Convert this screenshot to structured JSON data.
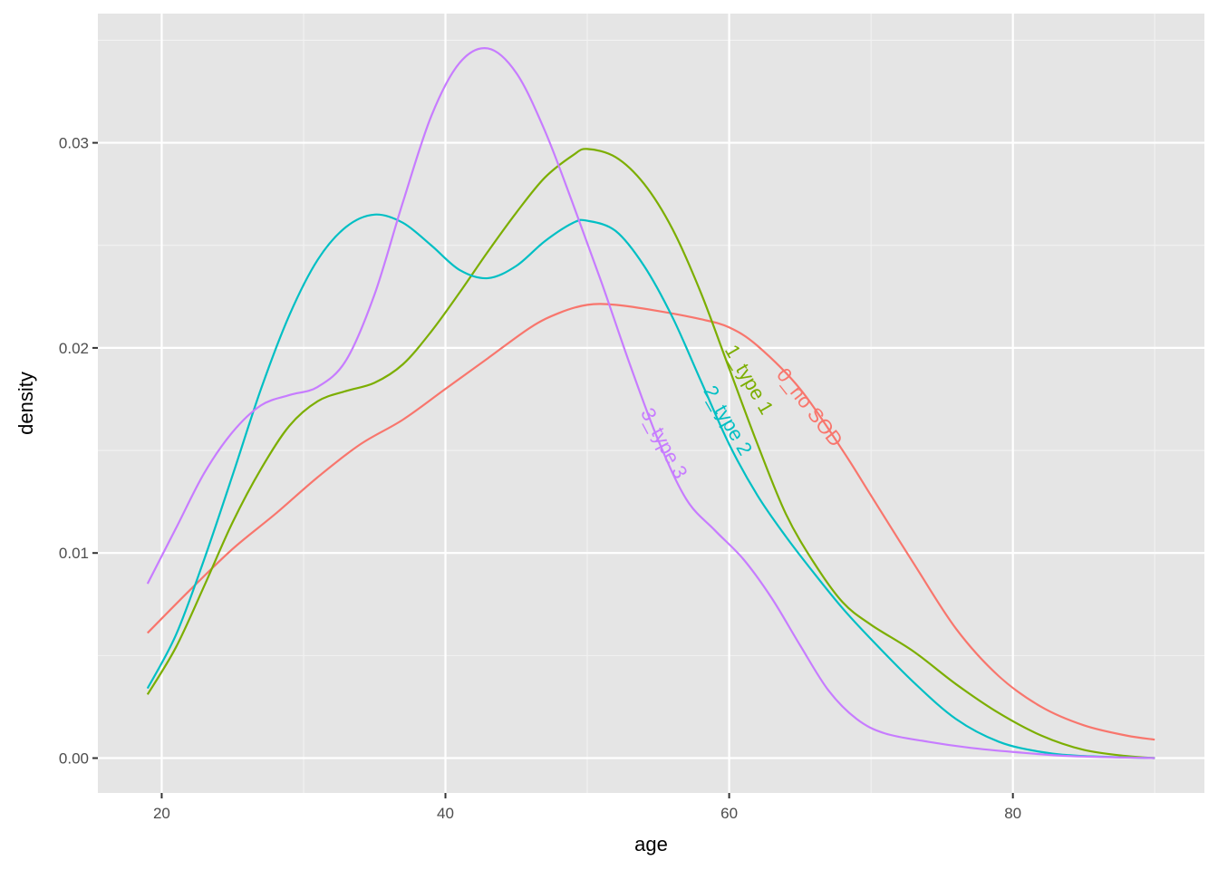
{
  "chart_data": {
    "type": "line",
    "subtype": "density",
    "title": "",
    "xlabel": "age",
    "ylabel": "density",
    "xlim": [
      15.5,
      93.5
    ],
    "ylim": [
      -0.0017,
      0.0363
    ],
    "x_ticks": [
      20,
      40,
      60,
      80
    ],
    "x_tick_labels": [
      "20",
      "40",
      "60",
      "80"
    ],
    "x_minor_gridlines": [
      30,
      50,
      70,
      90
    ],
    "y_ticks": [
      0.0,
      0.01,
      0.02,
      0.03
    ],
    "y_tick_labels": [
      "0.00",
      "0.01",
      "0.02",
      "0.03"
    ],
    "y_minor_gridlines": [
      0.005,
      0.015,
      0.025,
      0.035
    ],
    "grid": true,
    "legend": "none (direct curve labels)",
    "panel_background": "#e5e5e5",
    "series": [
      {
        "name": "0_no SOD",
        "color": "#f8766d",
        "label_position": {
          "age": 65.3,
          "density": 0.0169,
          "angle": 52
        },
        "points": [
          [
            19,
            0.0061
          ],
          [
            22,
            0.0082
          ],
          [
            25,
            0.0102
          ],
          [
            28,
            0.0119
          ],
          [
            31,
            0.0137
          ],
          [
            34,
            0.0153
          ],
          [
            37,
            0.0165
          ],
          [
            40,
            0.018
          ],
          [
            43,
            0.0195
          ],
          [
            46,
            0.021
          ],
          [
            48,
            0.0217
          ],
          [
            50,
            0.0221
          ],
          [
            52,
            0.0221
          ],
          [
            55,
            0.0218
          ],
          [
            58,
            0.0214
          ],
          [
            60,
            0.021
          ],
          [
            62,
            0.0201
          ],
          [
            65,
            0.018
          ],
          [
            68,
            0.015
          ],
          [
            70,
            0.0128
          ],
          [
            73,
            0.0095
          ],
          [
            76,
            0.0063
          ],
          [
            79,
            0.004
          ],
          [
            82,
            0.0025
          ],
          [
            85,
            0.0016
          ],
          [
            88,
            0.0011
          ],
          [
            90,
            0.0009
          ]
        ]
      },
      {
        "name": "1_type 1",
        "color": "#7cae00",
        "label_position": {
          "age": 61.0,
          "density": 0.0183,
          "angle": 60
        },
        "points": [
          [
            19,
            0.0031
          ],
          [
            21,
            0.0054
          ],
          [
            23,
            0.0084
          ],
          [
            25,
            0.0115
          ],
          [
            27,
            0.0141
          ],
          [
            29,
            0.0162
          ],
          [
            31,
            0.0174
          ],
          [
            33,
            0.0179
          ],
          [
            35,
            0.0183
          ],
          [
            37,
            0.0192
          ],
          [
            39,
            0.0208
          ],
          [
            41,
            0.0227
          ],
          [
            43,
            0.0247
          ],
          [
            45,
            0.0266
          ],
          [
            47,
            0.0283
          ],
          [
            49,
            0.0294
          ],
          [
            50,
            0.0297
          ],
          [
            52,
            0.0293
          ],
          [
            54,
            0.028
          ],
          [
            56,
            0.0258
          ],
          [
            58,
            0.0227
          ],
          [
            60,
            0.019
          ],
          [
            62,
            0.0153
          ],
          [
            64,
            0.0119
          ],
          [
            66,
            0.0095
          ],
          [
            68,
            0.0076
          ],
          [
            70,
            0.0065
          ],
          [
            73,
            0.0052
          ],
          [
            76,
            0.0036
          ],
          [
            79,
            0.0022
          ],
          [
            82,
            0.0011
          ],
          [
            85,
            0.0004
          ],
          [
            88,
            0.0001
          ],
          [
            90,
            0.0
          ]
        ]
      },
      {
        "name": "2_type 2",
        "color": "#00bfc4",
        "label_position": {
          "age": 59.5,
          "density": 0.0163,
          "angle": 60
        },
        "points": [
          [
            19,
            0.0034
          ],
          [
            21,
            0.006
          ],
          [
            23,
            0.0097
          ],
          [
            25,
            0.0138
          ],
          [
            27,
            0.018
          ],
          [
            29,
            0.0216
          ],
          [
            31,
            0.0243
          ],
          [
            33,
            0.0259
          ],
          [
            35,
            0.0265
          ],
          [
            37,
            0.0261
          ],
          [
            39,
            0.025
          ],
          [
            41,
            0.0238
          ],
          [
            43,
            0.0234
          ],
          [
            45,
            0.024
          ],
          [
            47,
            0.0252
          ],
          [
            49,
            0.0261
          ],
          [
            50,
            0.0262
          ],
          [
            52,
            0.0257
          ],
          [
            54,
            0.024
          ],
          [
            56,
            0.0215
          ],
          [
            58,
            0.0184
          ],
          [
            60,
            0.0153
          ],
          [
            62,
            0.0128
          ],
          [
            64,
            0.0108
          ],
          [
            66,
            0.009
          ],
          [
            68,
            0.0073
          ],
          [
            70,
            0.0058
          ],
          [
            73,
            0.0037
          ],
          [
            76,
            0.0019
          ],
          [
            79,
            0.0008
          ],
          [
            82,
            0.0003
          ],
          [
            85,
            0.0001
          ],
          [
            90,
            0.0
          ]
        ]
      },
      {
        "name": "3_type 3",
        "color": "#c77cff",
        "label_position": {
          "age": 55.0,
          "density": 0.0152,
          "angle": 62
        },
        "points": [
          [
            19,
            0.0085
          ],
          [
            21,
            0.0112
          ],
          [
            23,
            0.0139
          ],
          [
            25,
            0.0159
          ],
          [
            27,
            0.0172
          ],
          [
            29,
            0.0177
          ],
          [
            31,
            0.0181
          ],
          [
            33,
            0.0194
          ],
          [
            35,
            0.0226
          ],
          [
            37,
            0.0271
          ],
          [
            39,
            0.0313
          ],
          [
            41,
            0.0339
          ],
          [
            43,
            0.0346
          ],
          [
            45,
            0.0334
          ],
          [
            47,
            0.0306
          ],
          [
            49,
            0.027
          ],
          [
            51,
            0.0232
          ],
          [
            53,
            0.0192
          ],
          [
            55,
            0.0155
          ],
          [
            57,
            0.0126
          ],
          [
            59,
            0.0111
          ],
          [
            61,
            0.0097
          ],
          [
            63,
            0.0078
          ],
          [
            65,
            0.0055
          ],
          [
            67,
            0.0033
          ],
          [
            69,
            0.0019
          ],
          [
            71,
            0.0012
          ],
          [
            74,
            0.0008
          ],
          [
            77,
            0.0005
          ],
          [
            80,
            0.0003
          ],
          [
            84,
            0.0001
          ],
          [
            90,
            0.0
          ]
        ]
      }
    ]
  }
}
